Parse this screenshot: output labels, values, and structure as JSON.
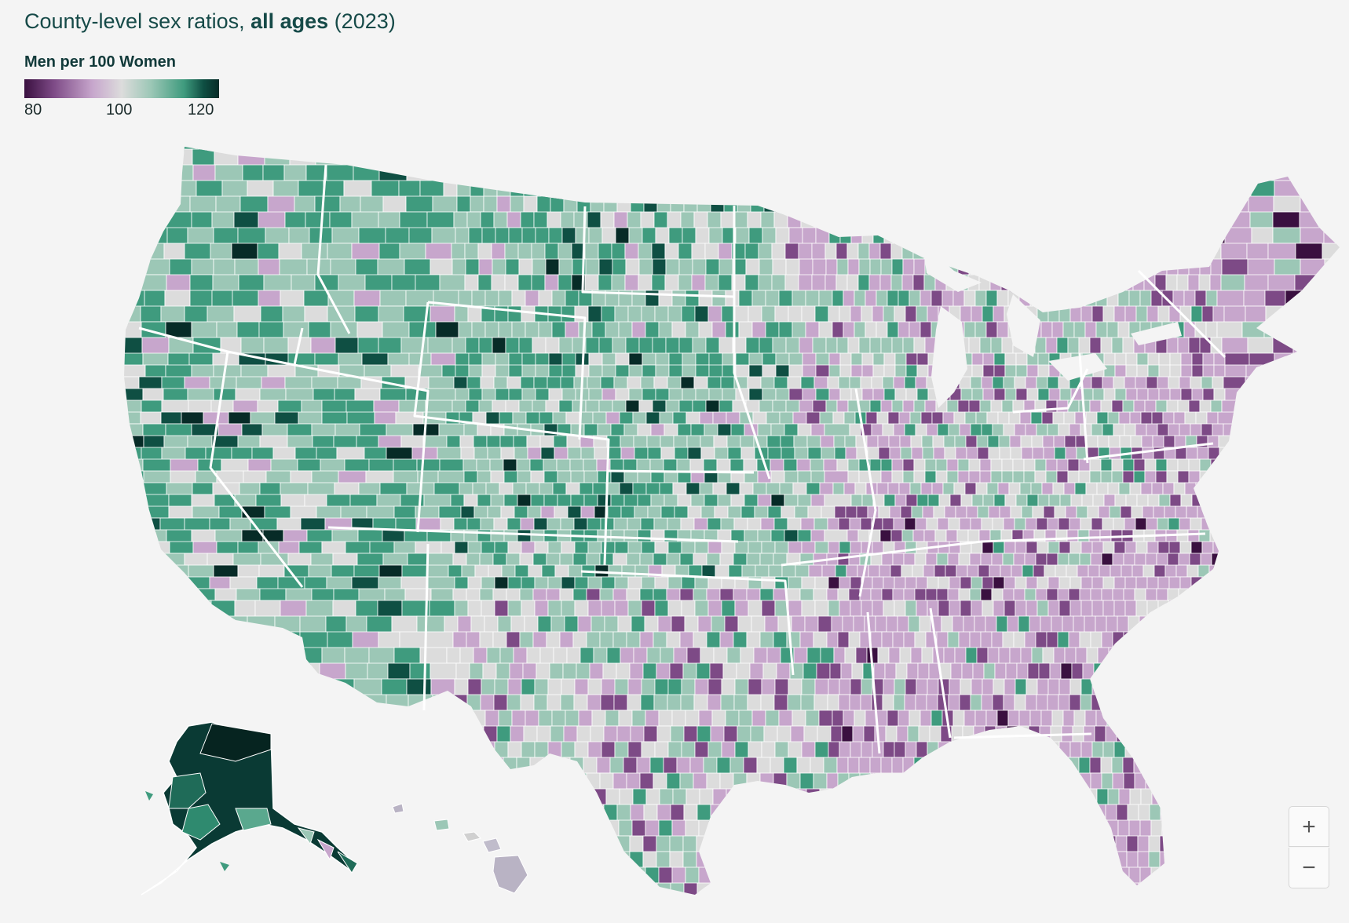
{
  "title": {
    "prefix": "County-level sex ratios, ",
    "bold": "all ages",
    "suffix": " (2023)"
  },
  "legend": {
    "title": "Men per 100 Women",
    "ticks": [
      "80",
      "100",
      "120"
    ],
    "range": [
      80,
      120
    ],
    "colors": {
      "very_low": "#3a1040",
      "low": "#7d4a86",
      "below": "#c7a6cc",
      "neutral": "#dcdcdc",
      "above": "#9cc7b6",
      "high": "#3f9b7e",
      "very_high": "#0f4f43",
      "extreme": "#072b27"
    }
  },
  "zoom": {
    "in_label": "+",
    "out_label": "−"
  }
}
